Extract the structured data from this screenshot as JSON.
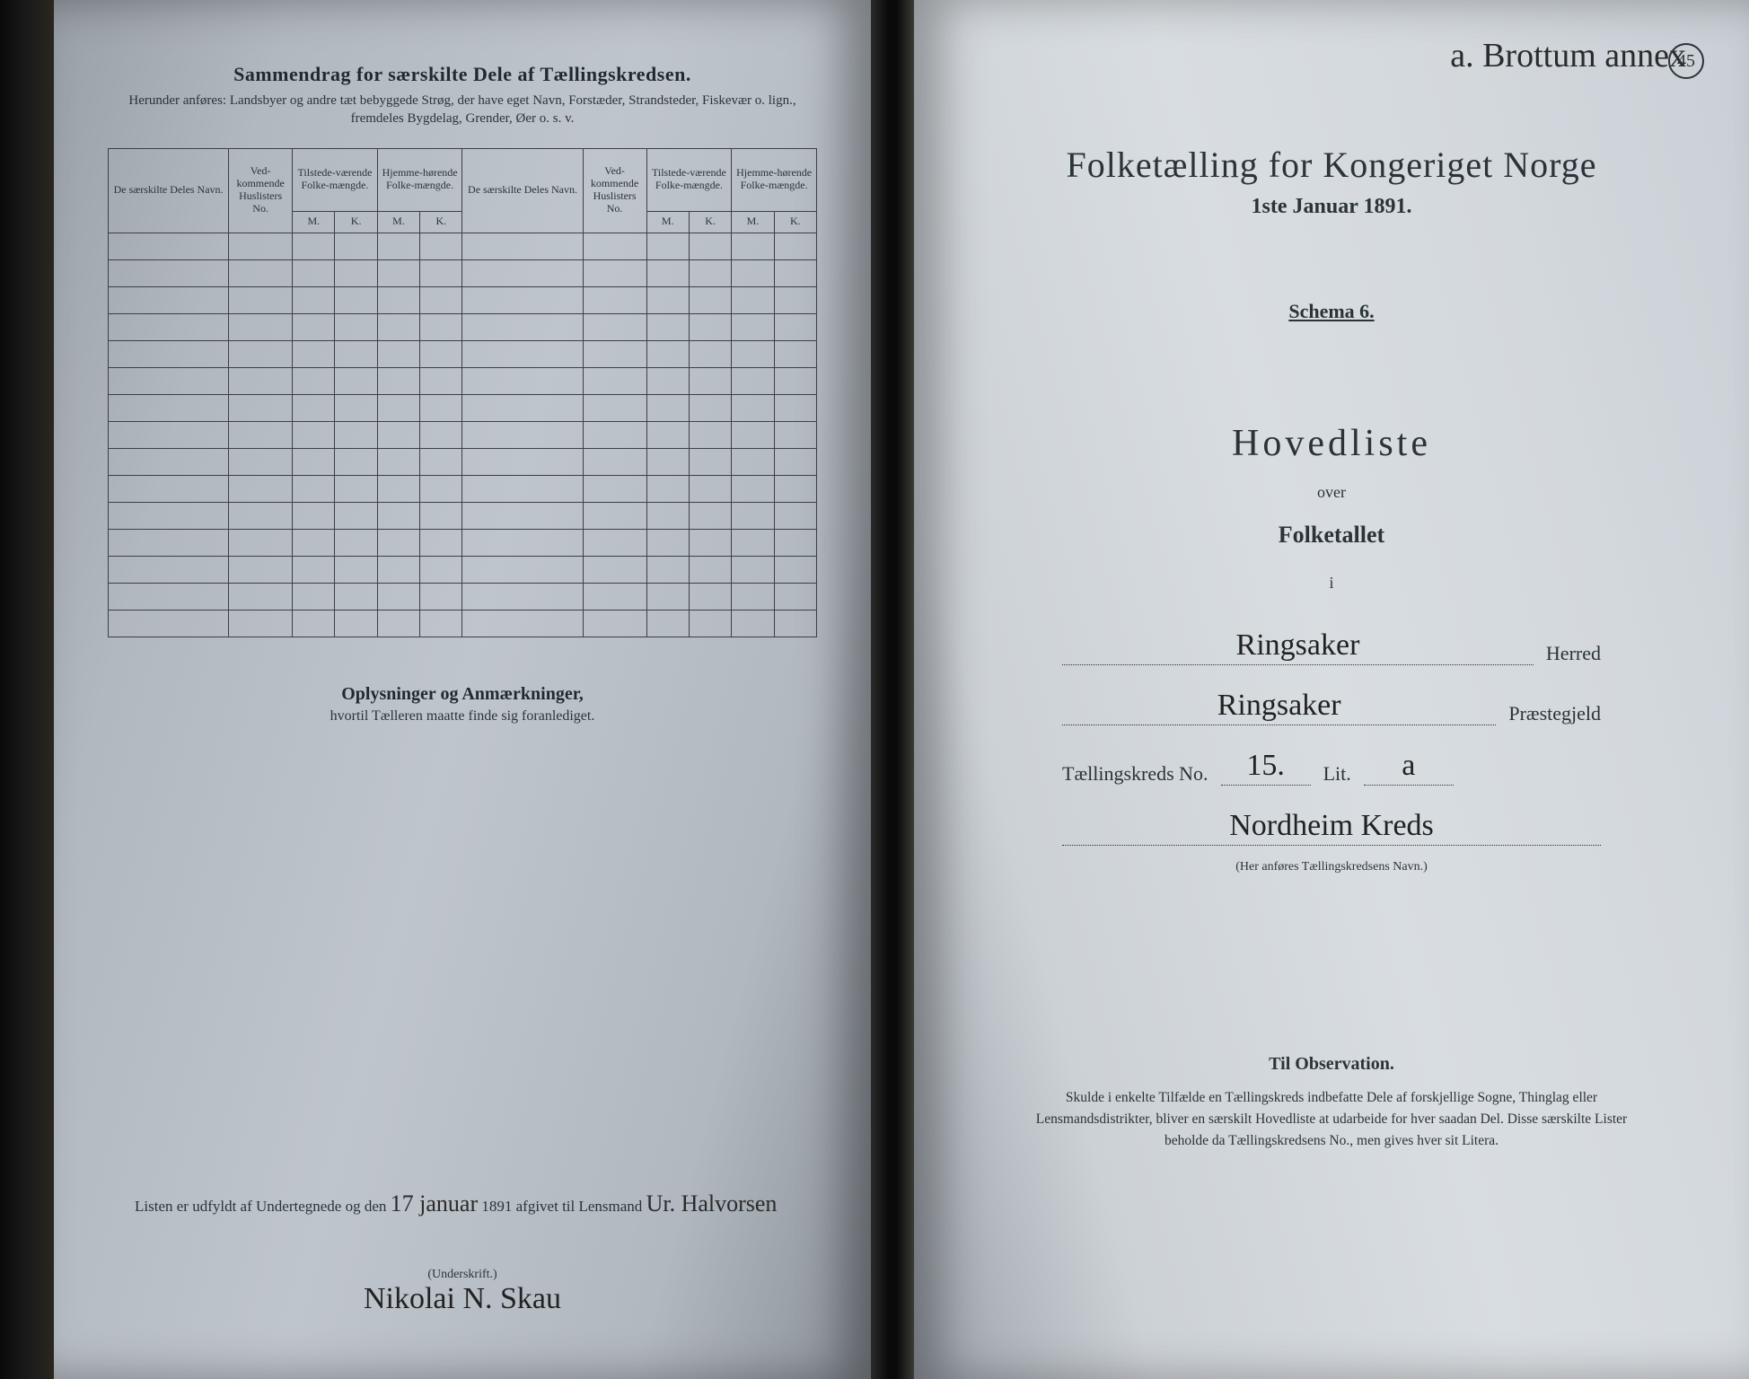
{
  "colors": {
    "ink": "#2a3438",
    "script": "#2b2b2b",
    "left_paper": "#bfc5cc",
    "right_paper": "#d8dde1",
    "rule": "#3a4044"
  },
  "left": {
    "section_title": "Sammendrag for særskilte Dele af Tællingskredsen.",
    "section_sub": "Herunder anføres: Landsbyer og andre tæt bebyggede Strøg, der have eget Navn, Forstæder, Strandsteder, Fiskevær o. lign., fremdeles Bygdelag, Grender, Øer o. s. v.",
    "headers": {
      "deles_navn": "De særskilte Deles Navn.",
      "vedkom": "Ved-kommende Huslisters No.",
      "tilstede": "Tilstede-værende Folke-mængde.",
      "hjemme": "Hjemme-hørende Folke-mængde.",
      "m": "M.",
      "k": "K."
    },
    "row_count": 15,
    "oplys_title": "Oplysninger og Anmærkninger,",
    "oplys_sub": "hvortil Tælleren maatte finde sig foranlediget.",
    "footer_prefix": "Listen er udfyldt af Undertegnede og den",
    "footer_date_hand": "17 januar",
    "footer_year": "1891 afgivet til Lensmand",
    "footer_sign1": "Ur. Halvorsen",
    "underskrift": "(Underskrift.)",
    "sign2": "Nikolai N. Skau"
  },
  "right": {
    "topnote": "a. Brottum annex",
    "folio": "45",
    "main_title": "Folketælling for Kongeriget Norge",
    "main_date": "1ste Januar 1891.",
    "schema": "Schema 6.",
    "hoved": "Hovedliste",
    "over": "over",
    "folket": "Folketallet",
    "i": "i",
    "herred_val": "Ringsaker",
    "herred_lbl": "Herred",
    "praeste_val": "Ringsaker",
    "praeste_lbl": "Præstegjeld",
    "taelling_lbl": "Tællingskreds No.",
    "taelling_no": "15.",
    "lit_lbl": "Lit.",
    "lit_val": "a",
    "kreds_val": "Nordheim Kreds",
    "kreds_note": "(Her anføres Tællingskredsens Navn.)",
    "obs_title": "Til Observation.",
    "obs_body": "Skulde i enkelte Tilfælde en Tællingskreds indbefatte Dele af forskjellige Sogne, Thinglag eller Lensmandsdistrikter, bliver en særskilt Hovedliste at udarbeide for hver saadan Del. Disse særskilte Lister beholde da Tællingskredsens No., men gives hver sit Litera."
  }
}
